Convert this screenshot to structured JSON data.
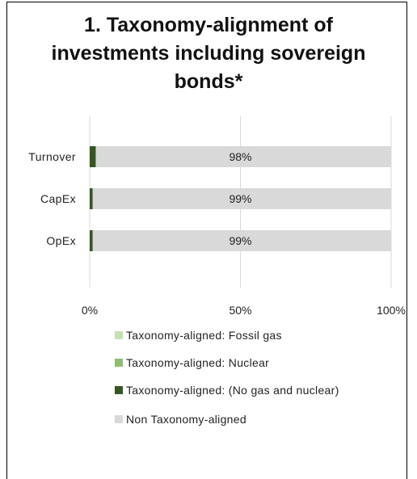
{
  "chart_data": {
    "type": "bar",
    "orientation": "horizontal",
    "stacked": true,
    "title": "1. Taxonomy-alignment of investments including sovereign bonds*",
    "categories": [
      "Turnover",
      "CapEx",
      "OpEx"
    ],
    "series": [
      {
        "name": "Taxonomy-aligned: Fossil gas",
        "color": "#c6e0b4",
        "values": [
          0,
          0,
          0
        ]
      },
      {
        "name": "Taxonomy-aligned: Nuclear",
        "color": "#8fbc72",
        "values": [
          0,
          0,
          0
        ]
      },
      {
        "name": "Taxonomy-aligned: (No gas and nuclear)",
        "color": "#375623",
        "values": [
          2,
          1,
          1
        ]
      },
      {
        "name": "Non Taxonomy-aligned",
        "color": "#d9d9d9",
        "values": [
          98,
          99,
          99
        ]
      }
    ],
    "data_labels": [
      "98%",
      "99%",
      "99%"
    ],
    "x_ticks": [
      "0%",
      "50%",
      "100%"
    ],
    "xlim": [
      0,
      100
    ],
    "grid": true,
    "legend_position": "bottom"
  }
}
